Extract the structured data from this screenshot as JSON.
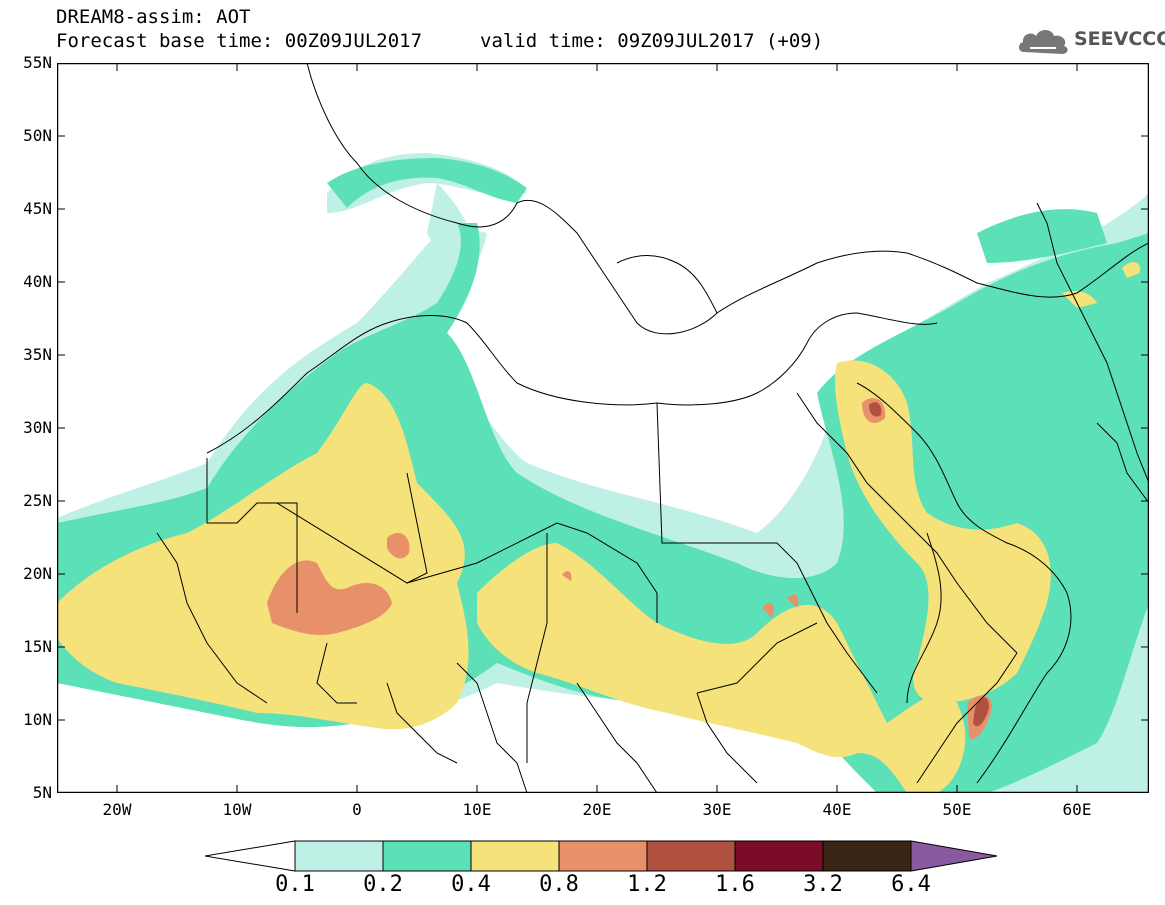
{
  "header": {
    "title_line1": "DREAM8-assim: AOT",
    "title_line2": "Forecast base time: 00Z09JUL2017",
    "valid_time": "valid time: 09Z09JUL2017 (+09)",
    "logo_text": "SEEVCCC"
  },
  "axes": {
    "lat_labels": [
      "55N",
      "50N",
      "45N",
      "40N",
      "35N",
      "30N",
      "25N",
      "20N",
      "15N",
      "10N",
      "5N"
    ],
    "lon_labels": [
      "20W",
      "10W",
      "0",
      "10E",
      "20E",
      "30E",
      "40E",
      "50E",
      "60E"
    ]
  },
  "colorbar": {
    "labels": [
      "0.1",
      "0.2",
      "0.4",
      "0.8",
      "1.2",
      "1.6",
      "3.2",
      "6.4"
    ],
    "colors": [
      "#ffffff",
      "#bff0e6",
      "#5ce0b8",
      "#f5e27a",
      "#e8906a",
      "#b0503f",
      "#7a0c28",
      "#3a2414",
      "#8a5aa0"
    ]
  }
}
